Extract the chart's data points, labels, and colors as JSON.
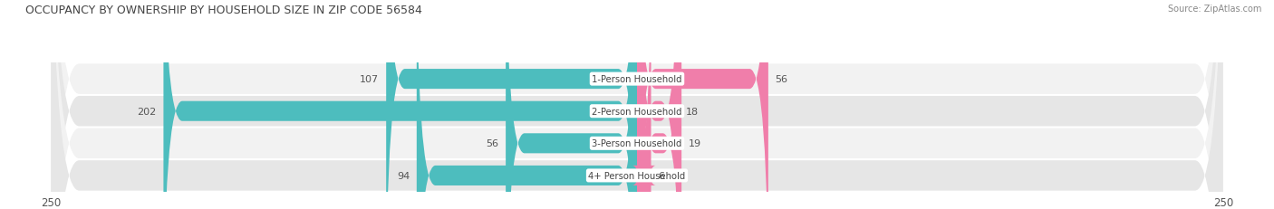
{
  "title": "OCCUPANCY BY OWNERSHIP BY HOUSEHOLD SIZE IN ZIP CODE 56584",
  "source": "Source: ZipAtlas.com",
  "categories": [
    "1-Person Household",
    "2-Person Household",
    "3-Person Household",
    "4+ Person Household"
  ],
  "owner_values": [
    107,
    202,
    56,
    94
  ],
  "renter_values": [
    56,
    18,
    19,
    6
  ],
  "owner_color": "#4dbdbe",
  "renter_color": "#f07eaa",
  "axis_max": 250,
  "row_even_color": "#f2f2f2",
  "row_odd_color": "#e6e6e6",
  "label_color": "#555555",
  "title_color": "#444444"
}
